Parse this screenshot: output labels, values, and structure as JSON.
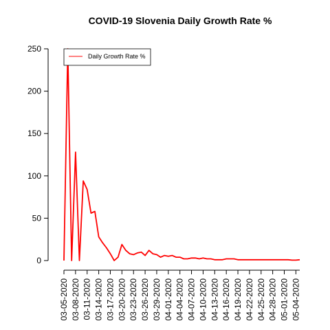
{
  "chart_data": {
    "type": "line",
    "title": "COVID-19 Slovenia Daily Growth Rate %",
    "xlabel": "",
    "ylabel": "",
    "ylim": [
      0,
      250
    ],
    "y_ticks": [
      0,
      50,
      100,
      150,
      200,
      250
    ],
    "x_tick_labels": [
      "03-05-2020",
      "03-08-2020",
      "03-11-2020",
      "03-14-2020",
      "03-17-2020",
      "03-20-2020",
      "03-23-2020",
      "03-26-2020",
      "03-29-2020",
      "04-01-2020",
      "04-04-2020",
      "04-07-2020",
      "04-10-2020",
      "04-13-2020",
      "04-16-2020",
      "04-19-2020",
      "04-22-2020",
      "04-25-2020",
      "04-28-2020",
      "05-01-2020",
      "05-04-2020"
    ],
    "x": [
      "03-05-2020",
      "03-06-2020",
      "03-07-2020",
      "03-08-2020",
      "03-09-2020",
      "03-10-2020",
      "03-11-2020",
      "03-12-2020",
      "03-13-2020",
      "03-14-2020",
      "03-15-2020",
      "03-16-2020",
      "03-17-2020",
      "03-18-2020",
      "03-19-2020",
      "03-20-2020",
      "03-21-2020",
      "03-22-2020",
      "03-23-2020",
      "03-24-2020",
      "03-25-2020",
      "03-26-2020",
      "03-27-2020",
      "03-28-2020",
      "03-29-2020",
      "03-30-2020",
      "03-31-2020",
      "04-01-2020",
      "04-02-2020",
      "04-03-2020",
      "04-04-2020",
      "04-05-2020",
      "04-06-2020",
      "04-07-2020",
      "04-08-2020",
      "04-09-2020",
      "04-10-2020",
      "04-11-2020",
      "04-12-2020",
      "04-13-2020",
      "04-14-2020",
      "04-15-2020",
      "04-16-2020",
      "04-17-2020",
      "04-18-2020",
      "04-19-2020",
      "04-20-2020",
      "04-21-2020",
      "04-22-2020",
      "04-23-2020",
      "04-24-2020",
      "04-25-2020",
      "04-26-2020",
      "04-27-2020",
      "04-28-2020",
      "04-29-2020",
      "04-30-2020",
      "05-01-2020",
      "05-02-2020",
      "05-03-2020",
      "05-04-2020",
      "05-05-2020"
    ],
    "series": [
      {
        "name": "Daily Growth Rate %",
        "color": "#ff0000",
        "values": [
          0,
          250,
          0,
          128,
          0,
          94,
          84,
          56,
          58,
          28,
          21,
          15,
          8,
          0,
          4,
          19,
          12,
          8,
          7,
          9,
          10,
          6,
          12,
          8,
          7,
          4,
          6,
          5,
          6,
          4,
          4,
          2,
          2,
          3,
          3,
          2,
          3,
          2,
          2,
          1,
          1,
          1,
          2,
          2,
          2,
          1,
          1,
          1,
          1,
          1,
          1,
          1,
          1,
          1,
          1,
          1,
          1,
          1,
          1,
          0.5,
          0.5,
          1
        ]
      }
    ],
    "legend": {
      "position": "top-left",
      "entries": [
        "Daily Growth Rate %"
      ]
    },
    "grid": false
  }
}
